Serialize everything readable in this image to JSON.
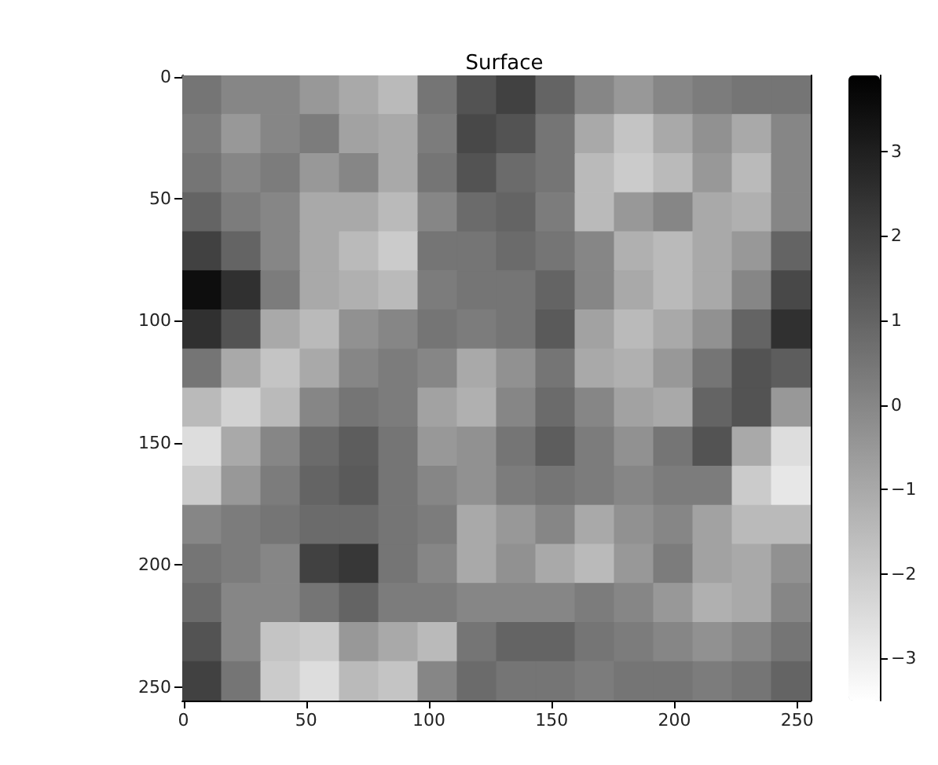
{
  "chart_data": {
    "type": "heatmap",
    "title": "Surface",
    "xlim": [
      -0.5,
      255.5
    ],
    "ylim": [
      255.5,
      -0.5
    ],
    "xticks": [
      0,
      50,
      100,
      150,
      200,
      250
    ],
    "yticks": [
      0,
      50,
      100,
      150,
      200,
      250
    ],
    "cells": [
      [
        0.5,
        0,
        0,
        -0.5,
        -1,
        -1.5,
        0.5,
        1.5,
        2,
        1,
        0,
        -0.5,
        0,
        0.3,
        0.5,
        0.5
      ],
      [
        0.3,
        -0.5,
        0,
        0.3,
        -0.8,
        -1,
        0.3,
        1.8,
        1.5,
        0.5,
        -1,
        -1.8,
        -1,
        -0.3,
        -1,
        0
      ],
      [
        0.5,
        0,
        0.3,
        -0.5,
        0,
        -1,
        0.5,
        1.5,
        0.8,
        0.5,
        -1.5,
        -2,
        -1.5,
        -0.5,
        -1.5,
        0
      ],
      [
        1,
        0.3,
        0,
        -1,
        -1,
        -1.5,
        0,
        0.8,
        1,
        0.3,
        -1.5,
        -0.5,
        0,
        -1,
        -1.2,
        0
      ],
      [
        2,
        1,
        0,
        -1,
        -1.5,
        -2,
        0.5,
        0.5,
        0.8,
        0.5,
        0,
        -1.2,
        -1.5,
        -1,
        -0.5,
        1
      ],
      [
        3.5,
        2.5,
        0.3,
        -1,
        -1.2,
        -1.5,
        0.3,
        0.5,
        0.5,
        1,
        0,
        -1,
        -1.5,
        -1,
        0,
        1.8
      ],
      [
        2.5,
        1.5,
        -1,
        -1.5,
        -0.3,
        0,
        0.5,
        0.3,
        0.5,
        1.3,
        -0.8,
        -1.5,
        -1,
        -0.3,
        1,
        2.5
      ],
      [
        0.5,
        -1,
        -1.8,
        -1,
        0,
        0.3,
        0,
        -1,
        -0.3,
        0.5,
        -1,
        -1.2,
        -0.5,
        0.5,
        1.5,
        1.2
      ],
      [
        -1.5,
        -2.2,
        -1.5,
        0,
        0.5,
        0.3,
        -0.8,
        -1.2,
        0,
        0.8,
        0,
        -0.8,
        -1,
        1,
        1.5,
        -0.5
      ],
      [
        -2.5,
        -1,
        0,
        0.8,
        1.2,
        0.5,
        -0.5,
        -0.3,
        0.5,
        1.2,
        0.3,
        -0.3,
        0.5,
        1.5,
        -1,
        -2.5
      ],
      [
        -2,
        -0.5,
        0.3,
        1,
        1.3,
        0.5,
        0,
        -0.3,
        0.3,
        0.5,
        0.3,
        0,
        0.3,
        0.3,
        -2,
        -2.8
      ],
      [
        0,
        0.3,
        0.5,
        0.8,
        0.8,
        0.5,
        0.3,
        -1,
        -0.5,
        0,
        -1,
        -0.3,
        0,
        -0.8,
        -1.5,
        -1.5
      ],
      [
        0.5,
        0.3,
        0,
        2,
        2.3,
        0.5,
        0,
        -1,
        -0.3,
        -1,
        -1.5,
        -0.5,
        0.3,
        -0.8,
        -1,
        -0.3
      ],
      [
        0.8,
        0,
        0,
        0.5,
        1,
        0.3,
        0.3,
        0,
        0,
        0,
        0.3,
        0,
        -0.5,
        -1.2,
        -1,
        0
      ],
      [
        1.5,
        0,
        -1.8,
        -2,
        -0.5,
        -1,
        -1.5,
        0.5,
        1,
        1,
        0.5,
        0.3,
        0,
        -0.3,
        0,
        0.5
      ],
      [
        2,
        0.5,
        -2,
        -2.5,
        -1.5,
        -1.8,
        0,
        0.8,
        0.5,
        0.5,
        0.3,
        0.5,
        0.5,
        0.3,
        0.5,
        1
      ]
    ],
    "clim": [
      -3.5,
      3.9
    ],
    "cticks": [
      {
        "value": -3,
        "label": "−3"
      },
      {
        "value": -2,
        "label": "−2"
      },
      {
        "value": -1,
        "label": "−1"
      },
      0,
      1,
      2,
      3
    ]
  }
}
